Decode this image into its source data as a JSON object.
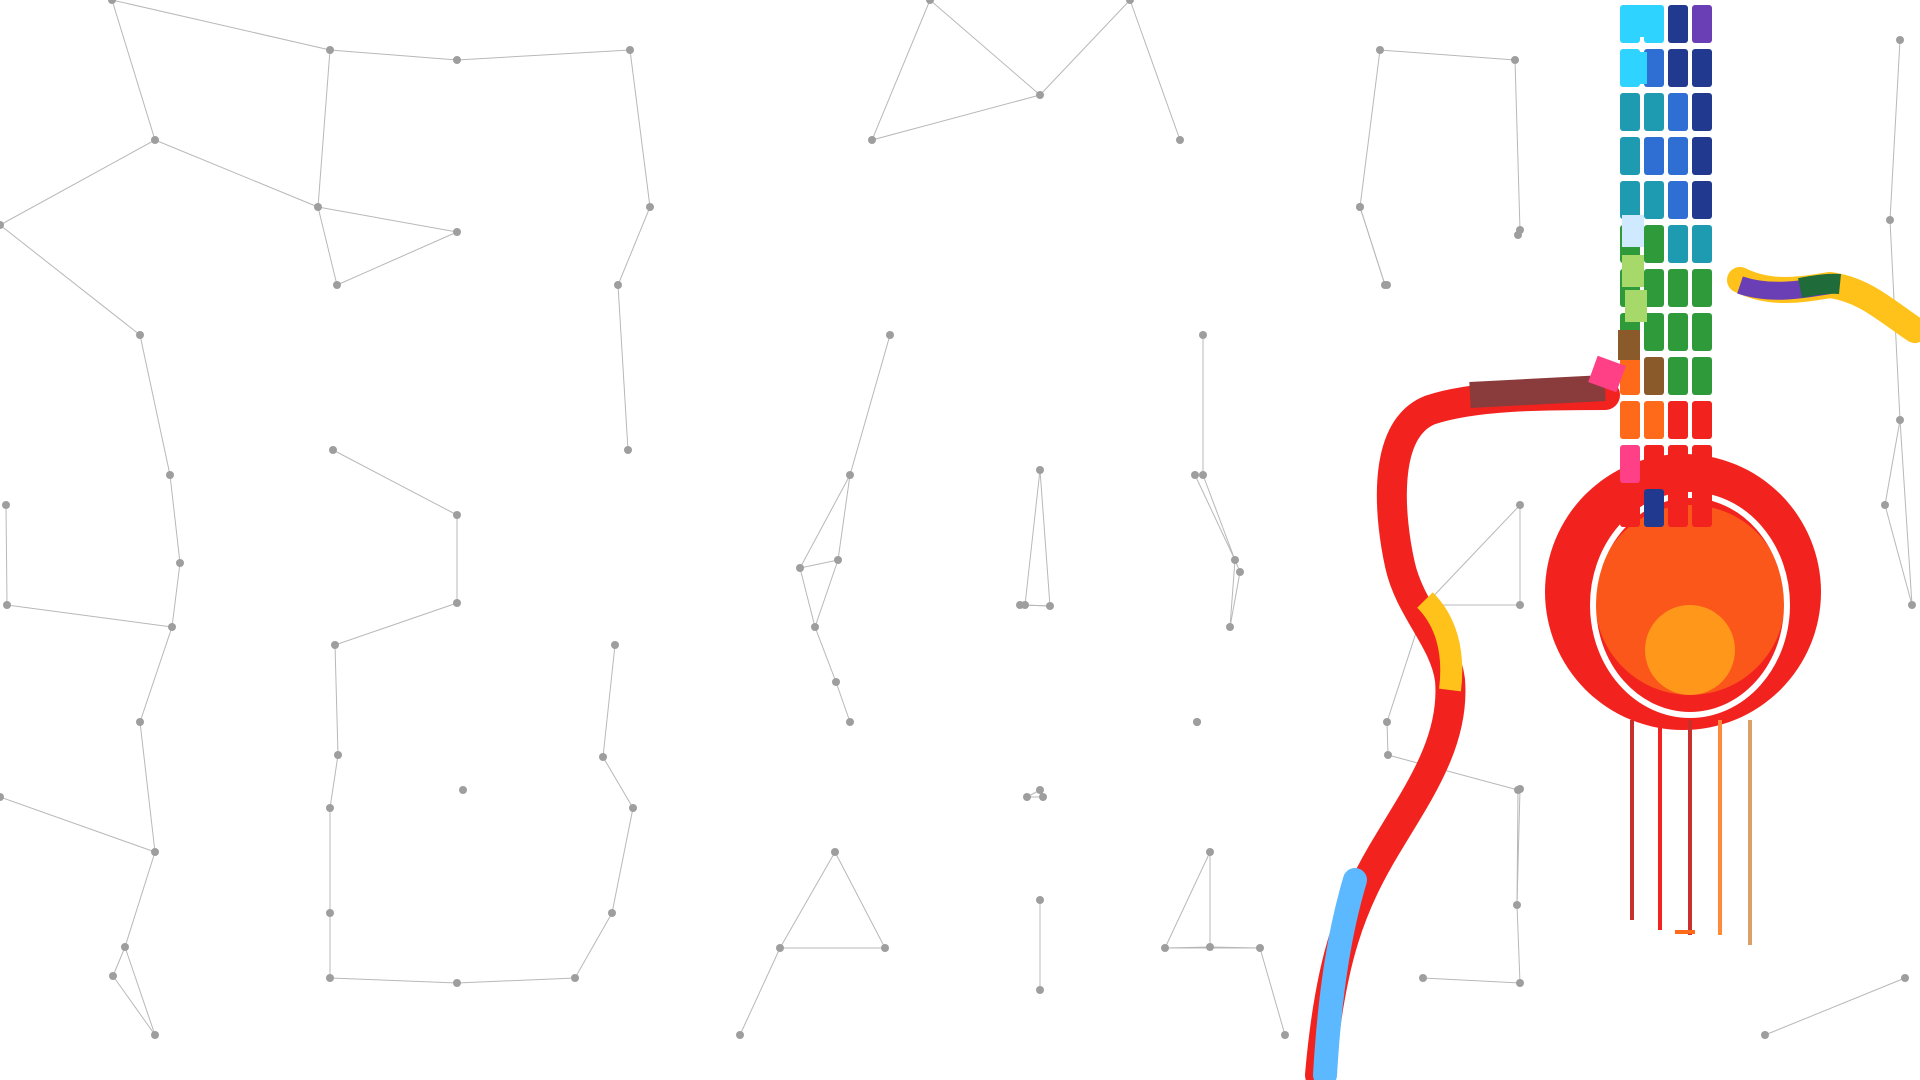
{
  "scene": {
    "subject": "guitar-illustration",
    "background": "#ffffff",
    "network_line_color": "#b8b8b8",
    "network_node_color": "#9e9e9e",
    "palette": {
      "red": "#f2231f",
      "orange": "#ff6a1a",
      "yellow": "#ffc21a",
      "green": "#2f9a3a",
      "teal": "#1e9bb0",
      "blue": "#2f6fd3",
      "navy": "#213a8f",
      "cyan": "#2fd3ff",
      "sky": "#5cb8ff",
      "purple": "#6a3fb5",
      "pink": "#ff3f86",
      "brown": "#8a5a2b"
    }
  }
}
